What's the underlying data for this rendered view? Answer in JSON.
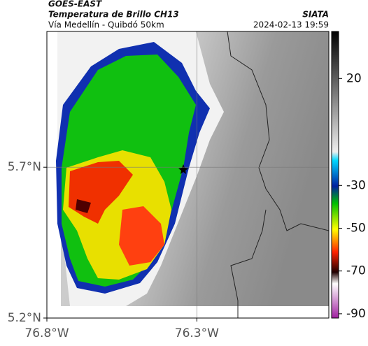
{
  "header": {
    "source": "GOES-EAST",
    "product": "Temperatura de Brillo CH13",
    "route": "Vía Medellín - Quibdó 50km",
    "agency": "SIATA",
    "timestamp": "2024-02-13 19:59"
  },
  "map": {
    "xlim": [
      -76.8,
      -75.86
    ],
    "ylim": [
      5.2,
      6.15
    ],
    "xticks": [
      {
        "value": -76.8,
        "label": "76.8°W"
      },
      {
        "value": -76.3,
        "label": "76.3°W"
      }
    ],
    "yticks": [
      {
        "value": 5.7,
        "label": "5.7°N"
      },
      {
        "value": 5.2,
        "label": "5.2°N"
      }
    ],
    "grid": true
  },
  "colorbar": {
    "lim": [
      -92,
      42
    ],
    "ticks": [
      20,
      -30,
      -50,
      -70,
      -90
    ]
  }
}
